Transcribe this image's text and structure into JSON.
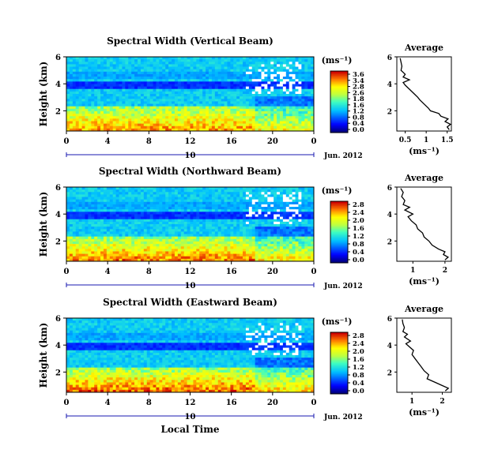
{
  "figure": {
    "xlabel": "Local Time",
    "colors": {
      "background": "#ffffff",
      "axis": "#000000",
      "date_line": "#1a1ab0",
      "missing_data": "#ffffff"
    }
  },
  "chart_data": [
    {
      "type": "heatmap",
      "title": "Spectral Width (Vertical Beam)",
      "ylabel": "Height (km)",
      "xticks": [
        "0",
        "4",
        "8",
        "12",
        "16",
        "20",
        "0"
      ],
      "xlim": [
        0,
        24
      ],
      "yticks": [
        "2",
        "4",
        "6"
      ],
      "ylim": [
        0.5,
        6
      ],
      "date_label": "10",
      "date_suffix": "Jun. 2012",
      "colorbar": {
        "unit": "(ms⁻¹)",
        "ticks": [
          "3.6",
          "3.4",
          "2.8",
          "2.6",
          "1.8",
          "1.6",
          "1.2",
          "0.8",
          "0.4",
          "0.0"
        ],
        "range": [
          0,
          3.6
        ]
      },
      "profile": {
        "title": "Average",
        "xlabel": "(ms⁻¹)",
        "xticks": [
          "0.5",
          "1",
          "1.5"
        ],
        "xlim": [
          0.3,
          1.6
        ],
        "yticks": [
          "2",
          "4",
          "6"
        ],
        "ylim": [
          0.5,
          6
        ],
        "points": [
          [
            1.55,
            0.6
          ],
          [
            1.5,
            0.8
          ],
          [
            1.58,
            1.0
          ],
          [
            1.45,
            1.2
          ],
          [
            1.52,
            1.4
          ],
          [
            1.35,
            1.6
          ],
          [
            1.3,
            1.8
          ],
          [
            1.1,
            2.0
          ],
          [
            1.05,
            2.2
          ],
          [
            0.95,
            2.5
          ],
          [
            0.85,
            2.8
          ],
          [
            0.8,
            3.0
          ],
          [
            0.7,
            3.3
          ],
          [
            0.6,
            3.6
          ],
          [
            0.5,
            3.9
          ],
          [
            0.45,
            4.1
          ],
          [
            0.6,
            4.3
          ],
          [
            0.45,
            4.5
          ],
          [
            0.5,
            4.7
          ],
          [
            0.4,
            5.0
          ],
          [
            0.42,
            5.3
          ],
          [
            0.4,
            5.6
          ],
          [
            0.38,
            5.9
          ]
        ]
      }
    },
    {
      "type": "heatmap",
      "title": "Spectral Width (Northward Beam)",
      "ylabel": "Height (km)",
      "xticks": [
        "0",
        "4",
        "8",
        "12",
        "16",
        "20",
        "0"
      ],
      "xlim": [
        0,
        24
      ],
      "yticks": [
        "2",
        "4",
        "6"
      ],
      "ylim": [
        0.5,
        6
      ],
      "date_label": "10",
      "date_suffix": "Jun. 2012",
      "colorbar": {
        "unit": "(ms⁻¹)",
        "ticks": [
          "2.8",
          "2.4",
          "2.0",
          "1.6",
          "1.2",
          "0.8",
          "0.4",
          "0.0"
        ],
        "range": [
          0,
          2.8
        ]
      },
      "profile": {
        "title": "Average",
        "xlabel": "(ms⁻¹)",
        "xticks": [
          "1",
          "2"
        ],
        "xlim": [
          0.5,
          2.2
        ],
        "yticks": [
          "2",
          "4",
          "6"
        ],
        "ylim": [
          0.5,
          6
        ],
        "points": [
          [
            2.0,
            0.6
          ],
          [
            2.1,
            0.8
          ],
          [
            1.95,
            1.0
          ],
          [
            2.0,
            1.2
          ],
          [
            1.8,
            1.4
          ],
          [
            1.6,
            1.7
          ],
          [
            1.5,
            2.0
          ],
          [
            1.35,
            2.3
          ],
          [
            1.3,
            2.6
          ],
          [
            1.15,
            2.9
          ],
          [
            1.1,
            3.2
          ],
          [
            0.95,
            3.5
          ],
          [
            0.85,
            3.8
          ],
          [
            1.0,
            4.0
          ],
          [
            0.75,
            4.3
          ],
          [
            0.9,
            4.5
          ],
          [
            0.7,
            4.7
          ],
          [
            0.75,
            5.0
          ],
          [
            0.65,
            5.3
          ],
          [
            0.7,
            5.6
          ],
          [
            0.62,
            5.9
          ]
        ]
      }
    },
    {
      "type": "heatmap",
      "title": "Spectral Width (Eastward Beam)",
      "ylabel": "Height (km)",
      "xticks": [
        "0",
        "4",
        "8",
        "12",
        "16",
        "20",
        "0"
      ],
      "xlim": [
        0,
        24
      ],
      "yticks": [
        "2",
        "4",
        "6"
      ],
      "ylim": [
        0.5,
        6
      ],
      "date_label": "10",
      "date_suffix": "Jun. 2012",
      "colorbar": {
        "unit": "(ms⁻¹)",
        "ticks": [
          "2.8",
          "2.4",
          "2.0",
          "1.6",
          "1.2",
          "0.8",
          "0.4",
          "0.0"
        ],
        "range": [
          0,
          2.8
        ]
      },
      "profile": {
        "title": "Average",
        "xlabel": "(ms⁻¹)",
        "xticks": [
          "1",
          "2"
        ],
        "xlim": [
          0.5,
          2.3
        ],
        "yticks": [
          "2",
          "4",
          "6"
        ],
        "ylim": [
          0.5,
          6
        ],
        "points": [
          [
            2.1,
            0.6
          ],
          [
            2.2,
            0.8
          ],
          [
            2.0,
            1.0
          ],
          [
            1.8,
            1.2
          ],
          [
            1.5,
            1.5
          ],
          [
            1.55,
            1.8
          ],
          [
            1.4,
            2.1
          ],
          [
            1.3,
            2.4
          ],
          [
            1.2,
            2.7
          ],
          [
            1.1,
            3.0
          ],
          [
            1.0,
            3.3
          ],
          [
            1.05,
            3.6
          ],
          [
            0.9,
            3.9
          ],
          [
            0.8,
            4.1
          ],
          [
            0.95,
            4.3
          ],
          [
            0.75,
            4.6
          ],
          [
            0.85,
            4.8
          ],
          [
            0.7,
            5.0
          ],
          [
            0.75,
            5.3
          ],
          [
            0.7,
            5.6
          ],
          [
            0.68,
            5.9
          ]
        ]
      }
    }
  ]
}
